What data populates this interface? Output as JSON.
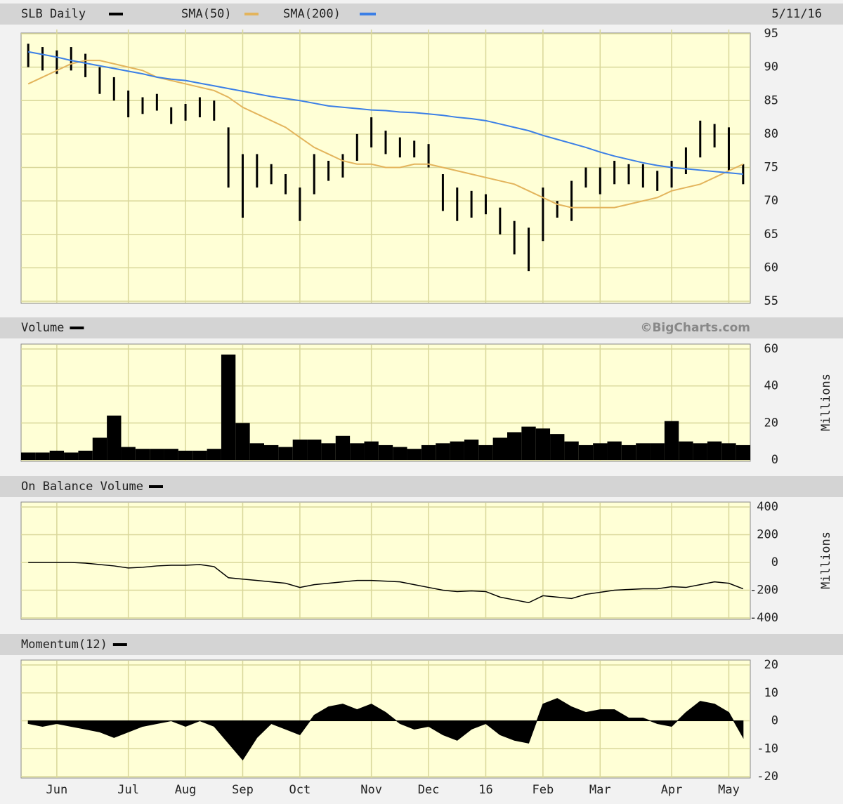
{
  "chart_data": [
    {
      "type": "range-bar",
      "date": "5/11/16",
      "categories": [
        null,
        null,
        "Jun",
        null,
        null,
        null,
        null,
        "Jul",
        null,
        null,
        null,
        "Aug",
        null,
        null,
        null,
        "Sep",
        null,
        null,
        null,
        "Oct",
        null,
        null,
        null,
        null,
        "Nov",
        null,
        null,
        null,
        "Dec",
        null,
        null,
        null,
        "16",
        null,
        null,
        null,
        "Feb",
        null,
        null,
        null,
        "Mar",
        null,
        null,
        null,
        null,
        "Apr",
        null,
        null,
        null,
        "May",
        null
      ],
      "ylim": [
        55,
        95
      ],
      "yticks": [
        55,
        60,
        65,
        70,
        75,
        80,
        85,
        90,
        95
      ],
      "grid": true,
      "series": [
        {
          "name": "SLB Daily",
          "color": "#000000",
          "high": [
            93.5,
            93,
            92.5,
            93,
            92,
            90,
            88.5,
            86.5,
            85.5,
            86,
            84,
            84.5,
            85.5,
            85,
            81,
            77,
            77,
            75.5,
            74,
            72,
            77,
            76,
            77,
            80,
            82.5,
            80.5,
            79.5,
            79,
            78.5,
            74,
            72,
            71.5,
            71,
            69,
            67,
            66,
            72,
            70,
            73,
            75,
            75,
            76,
            75.5,
            75.5,
            74.5,
            76,
            78,
            82,
            81.5,
            81,
            75.5
          ],
          "low": [
            90,
            89.5,
            89,
            89.5,
            88.5,
            86,
            85,
            82.5,
            83,
            83.5,
            81.5,
            82,
            82.5,
            82,
            72,
            67.5,
            72,
            72.5,
            71,
            67,
            71,
            73,
            73.5,
            76,
            78,
            77,
            76.5,
            76.5,
            75,
            68.5,
            67,
            67.5,
            68,
            65,
            62,
            59.5,
            64,
            67.5,
            67,
            72,
            71,
            72.5,
            72.5,
            72,
            71.5,
            72,
            74,
            76.5,
            78,
            74.5,
            72.5
          ]
        },
        {
          "name": "SMA(50)",
          "color": "#e3b45c",
          "values": [
            87.5,
            88.5,
            89.5,
            90.5,
            91,
            91,
            90.5,
            90,
            89.5,
            88.5,
            88,
            87.5,
            87,
            86.5,
            85.5,
            84,
            83,
            82,
            81,
            79.5,
            78,
            77,
            76,
            75.5,
            75.5,
            75,
            75,
            75.5,
            75.5,
            75,
            74.5,
            74,
            73.5,
            73,
            72.5,
            71.5,
            70.5,
            69.5,
            69,
            69,
            69,
            69,
            69.5,
            70,
            70.5,
            71.5,
            72,
            72.5,
            73.5,
            74.5,
            75.5
          ]
        },
        {
          "name": "SMA(200)",
          "color": "#3b7fe6",
          "values": [
            92.3,
            91.9,
            91.5,
            91,
            90.6,
            90.2,
            89.8,
            89.4,
            89,
            88.5,
            88.2,
            88,
            87.6,
            87.2,
            86.8,
            86.4,
            86,
            85.6,
            85.3,
            85,
            84.6,
            84.2,
            84,
            83.8,
            83.6,
            83.5,
            83.3,
            83.2,
            83,
            82.8,
            82.5,
            82.3,
            82,
            81.5,
            81,
            80.5,
            79.8,
            79.2,
            78.6,
            78,
            77.3,
            76.7,
            76.2,
            75.7,
            75.3,
            75,
            74.8,
            74.6,
            74.4,
            74.2,
            74
          ]
        }
      ]
    },
    {
      "type": "bar",
      "title": "Volume",
      "annotation": "©BigCharts.com",
      "y_label": "Millions",
      "color": "#000000",
      "ylim": [
        0,
        60
      ],
      "yticks": [
        0,
        20,
        40,
        60
      ],
      "grid": true,
      "values": [
        4,
        4,
        5,
        4,
        5,
        12,
        24,
        7,
        6,
        6,
        6,
        5,
        5,
        6,
        57,
        20,
        9,
        8,
        7,
        11,
        11,
        9,
        13,
        9,
        10,
        8,
        7,
        6,
        8,
        9,
        10,
        11,
        8,
        12,
        15,
        18,
        17,
        14,
        10,
        8,
        9,
        10,
        8,
        9,
        9,
        21,
        10,
        9,
        10,
        9,
        8
      ]
    },
    {
      "type": "line",
      "title": "On Balance Volume",
      "y_label": "Millions",
      "color": "#000000",
      "ylim": [
        -400,
        400
      ],
      "yticks": [
        -400,
        -200,
        0,
        200,
        400
      ],
      "grid": true,
      "values": [
        0,
        0,
        0,
        0,
        -5,
        -15,
        -25,
        -40,
        -35,
        -25,
        -20,
        -20,
        -15,
        -30,
        -110,
        -120,
        -130,
        -140,
        -150,
        -180,
        -160,
        -150,
        -140,
        -130,
        -130,
        -135,
        -140,
        -160,
        -180,
        -200,
        -210,
        -205,
        -210,
        -250,
        -270,
        -290,
        -240,
        -250,
        -260,
        -230,
        -215,
        -200,
        -195,
        -190,
        -190,
        -175,
        -180,
        -160,
        -140,
        -150,
        -190
      ]
    },
    {
      "type": "area",
      "title": "Momentum(12)",
      "color": "#000000",
      "ylim": [
        -20,
        20
      ],
      "yticks": [
        -20,
        -10,
        0,
        10,
        20
      ],
      "grid": true,
      "values": [
        -1,
        -2,
        -1,
        -2,
        -3,
        -4,
        -6,
        -4,
        -2,
        -1,
        0,
        -2,
        0,
        -2,
        -8,
        -14,
        -6,
        -1,
        -3,
        -5,
        2,
        5,
        6,
        4,
        6,
        3,
        -1,
        -3,
        -2,
        -5,
        -7,
        -3,
        -1,
        -5,
        -7,
        -8,
        6,
        8,
        5,
        3,
        4,
        4,
        1,
        1,
        -1,
        -2,
        3,
        7,
        6,
        3,
        -6
      ]
    }
  ]
}
